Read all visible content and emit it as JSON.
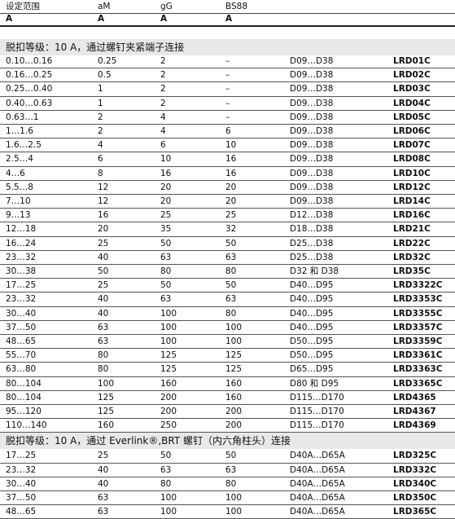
{
  "headers": {
    "row1": [
      "设定范围",
      "aM",
      "gG",
      "BS88",
      "",
      ""
    ],
    "row2": [
      "A",
      "A",
      "A",
      "A",
      "",
      ""
    ]
  },
  "section1": {
    "title": "脱扣等级：10 A，通过螺钉夹紧端子连接",
    "rows": [
      [
        "0.10…0.16",
        "0.25",
        "2",
        "–",
        "D09…D38",
        "LRD01C"
      ],
      [
        "0.16…0.25",
        "0.5",
        "2",
        "–",
        "D09…D38",
        "LRD02C"
      ],
      [
        "0.25…0.40",
        "1",
        "2",
        "–",
        "D09…D38",
        "LRD03C"
      ],
      [
        "0.40…0.63",
        "1",
        "2",
        "–",
        "D09…D38",
        "LRD04C"
      ],
      [
        "0.63…1",
        "2",
        "4",
        "–",
        "D09…D38",
        "LRD05C"
      ],
      [
        "1…1.6",
        "2",
        "4",
        "6",
        "D09…D38",
        "LRD06C"
      ],
      [
        "1.6…2.5",
        "4",
        "6",
        "10",
        "D09…D38",
        "LRD07C"
      ],
      [
        "2.5…4",
        "6",
        "10",
        "16",
        "D09…D38",
        "LRD08C"
      ],
      [
        "4…6",
        "8",
        "16",
        "16",
        "D09…D38",
        "LRD10C"
      ],
      [
        "5.5…8",
        "12",
        "20",
        "20",
        "D09…D38",
        "LRD12C"
      ],
      [
        "7…10",
        "12",
        "20",
        "20",
        "D09…D38",
        "LRD14C"
      ],
      [
        "9…13",
        "16",
        "25",
        "25",
        "D12…D38",
        "LRD16C"
      ],
      [
        "12…18",
        "20",
        "35",
        "32",
        "D18…D38",
        "LRD21C"
      ],
      [
        "16…24",
        "25",
        "50",
        "50",
        "D25…D38",
        "LRD22C"
      ],
      [
        "23…32",
        "40",
        "63",
        "63",
        "D25…D38",
        "LRD32C"
      ],
      [
        "30…38",
        "50",
        "80",
        "80",
        "D32 和 D38",
        "LRD35C"
      ],
      [
        "17…25",
        "25",
        "50",
        "50",
        "D40…D95",
        "LRD3322C"
      ],
      [
        "23…32",
        "40",
        "63",
        "63",
        "D40…D95",
        "LRD3353C"
      ],
      [
        "30…40",
        "40",
        "100",
        "80",
        "D40…D95",
        "LRD3355C"
      ],
      [
        "37…50",
        "63",
        "100",
        "100",
        "D40…D95",
        "LRD3357C"
      ],
      [
        "48…65",
        "63",
        "100",
        "100",
        "D50…D95",
        "LRD3359C"
      ],
      [
        "55…70",
        "80",
        "125",
        "125",
        "D50…D95",
        "LRD3361C"
      ],
      [
        "63…80",
        "80",
        "125",
        "125",
        "D65…D95",
        "LRD3363C"
      ],
      [
        "80…104",
        "100",
        "160",
        "160",
        "D80 和 D95",
        "LRD3365C"
      ],
      [
        "80…104",
        "125",
        "200",
        "160",
        "D115…D170",
        "LRD4365"
      ],
      [
        "95…120",
        "125",
        "200",
        "200",
        "D115…D170",
        "LRD4367"
      ],
      [
        "110…140",
        "160",
        "250",
        "200",
        "D115…D170",
        "LRD4369"
      ]
    ]
  },
  "section2": {
    "title": "脱扣等级：10 A，通过 Everlink®,BRT 螺钉（内六角柱头）连接",
    "rows": [
      [
        "17…25",
        "25",
        "50",
        "50",
        "D40A…D65A",
        "LRD325C"
      ],
      [
        "23…32",
        "40",
        "63",
        "63",
        "D40A…D65A",
        "LRD332C"
      ],
      [
        "30…40",
        "40",
        "80",
        "80",
        "D40A…D65A",
        "LRD340C"
      ],
      [
        "37…50",
        "63",
        "100",
        "100",
        "D40A…D65A",
        "LRD350C"
      ],
      [
        "48…65",
        "63",
        "100",
        "100",
        "D40A…D65A",
        "LRD365C"
      ]
    ]
  }
}
